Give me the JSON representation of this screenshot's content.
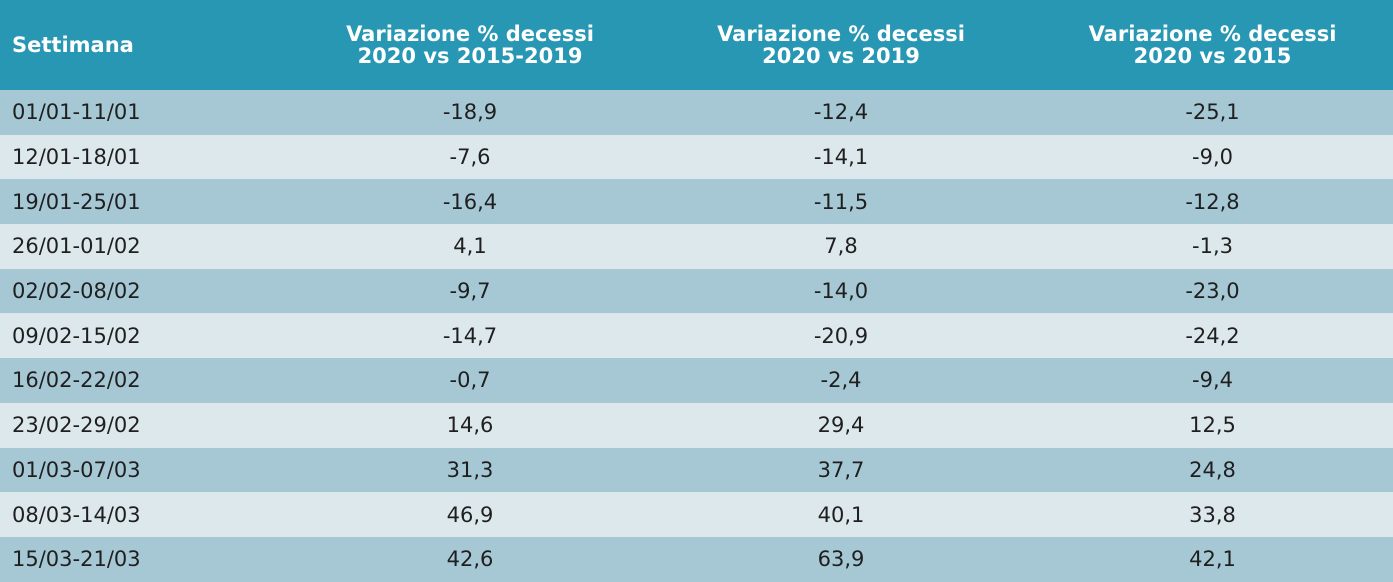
{
  "header": {
    "col0": "Settimana",
    "col1": [
      "Variazione % decessi",
      "2020 vs 2015-2019"
    ],
    "col2": [
      "Variazione % decessi",
      "2020 vs 2019"
    ],
    "col3": [
      "Variazione % decessi",
      "2020 vs 2015"
    ]
  },
  "rows": [
    [
      "01/01-11/01",
      "-18,9",
      "-12,4",
      "-25,1"
    ],
    [
      "12/01-18/01",
      "-7,6",
      "-14,1",
      "-9,0"
    ],
    [
      "19/01-25/01",
      "-16,4",
      "-11,5",
      "-12,8"
    ],
    [
      "26/01-01/02",
      "4,1",
      "7,8",
      "-1,3"
    ],
    [
      "02/02-08/02",
      "-9,7",
      "-14,0",
      "-23,0"
    ],
    [
      "09/02-15/02",
      "-14,7",
      "-20,9",
      "-24,2"
    ],
    [
      "16/02-22/02",
      "-0,7",
      "-2,4",
      "-9,4"
    ],
    [
      "23/02-29/02",
      "14,6",
      "29,4",
      "12,5"
    ],
    [
      "01/03-07/03",
      "31,3",
      "37,7",
      "24,8"
    ],
    [
      "08/03-14/03",
      "46,9",
      "40,1",
      "33,8"
    ],
    [
      "15/03-21/03",
      "42,6",
      "63,9",
      "42,1"
    ]
  ],
  "colors": {
    "header_bg": "#2797b4",
    "row_odd": "#a6c8d5",
    "row_even": "#dde8ed"
  }
}
